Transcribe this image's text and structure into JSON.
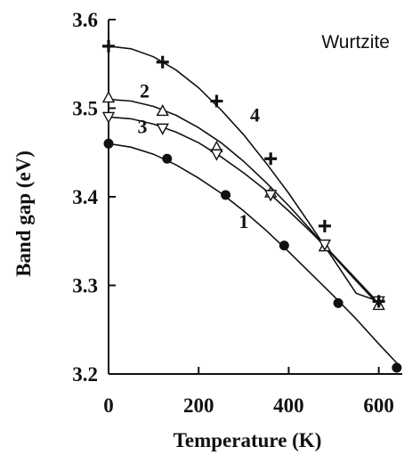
{
  "chart_data": {
    "type": "line",
    "title": "Wurtzite",
    "xlabel": "Temperature (K)",
    "ylabel": "Band gap (eV)",
    "xlim": [
      0,
      660
    ],
    "ylim": [
      3.2,
      3.6
    ],
    "xticks": [
      0,
      200,
      400,
      600
    ],
    "xtick_labels": [
      "0",
      "200",
      "400",
      "600"
    ],
    "yticks": [
      3.2,
      3.3,
      3.4,
      3.5,
      3.6
    ],
    "ytick_labels": [
      "3.2",
      "3.3",
      "3.4",
      "3.5",
      "3.6"
    ],
    "grid": false,
    "legend": "none",
    "series": [
      {
        "name": "1",
        "marker": "circle",
        "curve": {
          "x": [
            0,
            50,
            100,
            150,
            200,
            250,
            300,
            350,
            400,
            450,
            500,
            550,
            600,
            650
          ],
          "y": [
            3.46,
            3.456,
            3.448,
            3.436,
            3.421,
            3.404,
            3.384,
            3.362,
            3.338,
            3.313,
            3.288,
            3.262,
            3.234,
            3.207
          ]
        },
        "points": {
          "x": [
            0,
            130,
            260,
            390,
            510,
            640
          ],
          "y": [
            3.46,
            3.443,
            3.402,
            3.345,
            3.28,
            3.207
          ]
        }
      },
      {
        "name": "2",
        "marker": "triangle-up",
        "curve": {
          "x": [
            0,
            50,
            100,
            150,
            200,
            250,
            300,
            350,
            400,
            450,
            500,
            550,
            600
          ],
          "y": [
            3.51,
            3.508,
            3.502,
            3.492,
            3.478,
            3.461,
            3.44,
            3.416,
            3.39,
            3.362,
            3.333,
            3.305,
            3.278
          ]
        },
        "points": {
          "x": [
            0,
            120,
            240,
            360,
            480,
            600
          ],
          "y": [
            3.512,
            3.497,
            3.456,
            3.405,
            3.344,
            3.278
          ]
        }
      },
      {
        "name": "3",
        "marker": "triangle-down",
        "curve": {
          "x": [
            0,
            50,
            100,
            150,
            200,
            250,
            300,
            350,
            400,
            450,
            500,
            550,
            600
          ],
          "y": [
            3.49,
            3.488,
            3.482,
            3.473,
            3.461,
            3.445,
            3.427,
            3.407,
            3.384,
            3.36,
            3.334,
            3.307,
            3.28
          ]
        },
        "points": {
          "x": [
            0,
            120,
            240,
            360,
            480,
            600
          ],
          "y": [
            3.49,
            3.477,
            3.448,
            3.402,
            3.346,
            3.282
          ]
        }
      },
      {
        "name": "4",
        "marker": "plus",
        "curve": {
          "x": [
            0,
            50,
            100,
            150,
            200,
            250,
            300,
            350,
            400,
            450,
            500,
            550,
            600
          ],
          "y": [
            3.57,
            3.567,
            3.558,
            3.543,
            3.523,
            3.498,
            3.47,
            3.438,
            3.404,
            3.367,
            3.329,
            3.291,
            3.282
          ]
        },
        "points": {
          "x": [
            0,
            120,
            240,
            360,
            480,
            600
          ],
          "y": [
            3.57,
            3.552,
            3.508,
            3.443,
            3.367,
            3.282
          ]
        }
      }
    ],
    "annotations": [
      {
        "text": "1",
        "x": 300,
        "y": 3.365
      },
      {
        "text": "2",
        "x": 80,
        "y": 3.512
      },
      {
        "text": "3",
        "x": 75,
        "y": 3.472
      },
      {
        "text": "4",
        "x": 325,
        "y": 3.485
      }
    ]
  }
}
